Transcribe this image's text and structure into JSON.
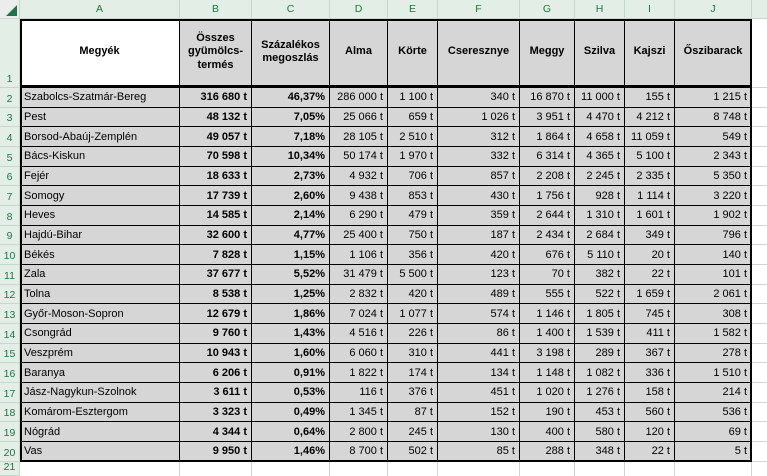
{
  "sheet": {
    "column_letters": [
      "A",
      "B",
      "C",
      "D",
      "E",
      "F",
      "G",
      "H",
      "I",
      "J"
    ],
    "row_numbers": [
      "1",
      "2",
      "3",
      "4",
      "5",
      "6",
      "7",
      "8",
      "9",
      "10",
      "11",
      "12",
      "13",
      "14",
      "15",
      "16",
      "17",
      "18",
      "19",
      "20",
      "21"
    ],
    "colors": {
      "accent_green": "#1f7346",
      "strip_background": "#e3eee7",
      "strip_gridline": "#c6d8cc",
      "cell_gray": "#d6d6d6",
      "grid_black": "#000000",
      "triangle_green": "#1e7145"
    }
  },
  "table": {
    "headers": [
      "Megyék",
      "Összes gyümölcs-termés",
      "Százalékos megoszlás",
      "Alma",
      "Körte",
      "Cseresznye",
      "Meggy",
      "Szilva",
      "Kajszi",
      "Őszibarack"
    ],
    "rows": [
      [
        "Szabolcs-Szatmár-Bereg",
        "316 680 t",
        "46,37%",
        "286 000 t",
        "1 100 t",
        "340 t",
        "16 870 t",
        "11 000 t",
        "155 t",
        "1 215 t"
      ],
      [
        "Pest",
        "48 132 t",
        "7,05%",
        "25 066 t",
        "659 t",
        "1 026 t",
        "3 951 t",
        "4 470 t",
        "4 212 t",
        "8 748 t"
      ],
      [
        "Borsod-Abaúj-Zemplén",
        "49 057 t",
        "7,18%",
        "28 105 t",
        "2 510 t",
        "312 t",
        "1 864 t",
        "4 658 t",
        "11 059 t",
        "549 t"
      ],
      [
        "Bács-Kiskun",
        "70 598 t",
        "10,34%",
        "50 174 t",
        "1 970 t",
        "332 t",
        "6 314 t",
        "4 365 t",
        "5 100 t",
        "2 343 t"
      ],
      [
        "Fejér",
        "18 633 t",
        "2,73%",
        "4 932 t",
        "706 t",
        "857 t",
        "2 208 t",
        "2 245 t",
        "2 335 t",
        "5 350 t"
      ],
      [
        "Somogy",
        "17 739 t",
        "2,60%",
        "9 438 t",
        "853 t",
        "430 t",
        "1 756 t",
        "928 t",
        "1 114 t",
        "3 220 t"
      ],
      [
        "Heves",
        "14 585 t",
        "2,14%",
        "6 290 t",
        "479 t",
        "359 t",
        "2 644 t",
        "1 310 t",
        "1 601 t",
        "1 902 t"
      ],
      [
        "Hajdú-Bihar",
        "32 600 t",
        "4,77%",
        "25 400 t",
        "750 t",
        "187 t",
        "2 434 t",
        "2 684 t",
        "349 t",
        "796 t"
      ],
      [
        "Békés",
        "7 828 t",
        "1,15%",
        "1 106 t",
        "356 t",
        "420 t",
        "676 t",
        "5 110 t",
        "20 t",
        "140 t"
      ],
      [
        "Zala",
        "37 677 t",
        "5,52%",
        "31 479 t",
        "5 500 t",
        "123 t",
        "70 t",
        "382 t",
        "22 t",
        "101 t"
      ],
      [
        "Tolna",
        "8 538 t",
        "1,25%",
        "2 832 t",
        "420 t",
        "489 t",
        "555 t",
        "522 t",
        "1 659 t",
        "2 061 t"
      ],
      [
        "Győr-Moson-Sopron",
        "12 679 t",
        "1,86%",
        "7 024 t",
        "1 077 t",
        "574 t",
        "1 146 t",
        "1 805 t",
        "745 t",
        "308 t"
      ],
      [
        "Csongrád",
        "9 760 t",
        "1,43%",
        "4 516 t",
        "226 t",
        "86 t",
        "1 400 t",
        "1 539 t",
        "411 t",
        "1 582 t"
      ],
      [
        "Veszprém",
        "10 943 t",
        "1,60%",
        "6 060 t",
        "310 t",
        "441 t",
        "3 198 t",
        "289 t",
        "367 t",
        "278 t"
      ],
      [
        "Baranya",
        "6 206 t",
        "0,91%",
        "1 822 t",
        "174 t",
        "134 t",
        "1 148 t",
        "1 082 t",
        "336 t",
        "1 510 t"
      ],
      [
        "Jász-Nagykun-Szolnok",
        "3 611 t",
        "0,53%",
        "116 t",
        "376 t",
        "451 t",
        "1 020 t",
        "1 276 t",
        "158 t",
        "214 t"
      ],
      [
        "Komárom-Esztergom",
        "3 323 t",
        "0,49%",
        "1 345 t",
        "87 t",
        "152 t",
        "190 t",
        "453 t",
        "560 t",
        "536 t"
      ],
      [
        "Nógrád",
        "4 344 t",
        "0,64%",
        "2 800 t",
        "245 t",
        "130 t",
        "400 t",
        "580 t",
        "120 t",
        "69 t"
      ],
      [
        "Vas",
        "9 950 t",
        "1,46%",
        "8 700 t",
        "502 t",
        "85 t",
        "288 t",
        "348 t",
        "22 t",
        "5 t"
      ]
    ]
  }
}
